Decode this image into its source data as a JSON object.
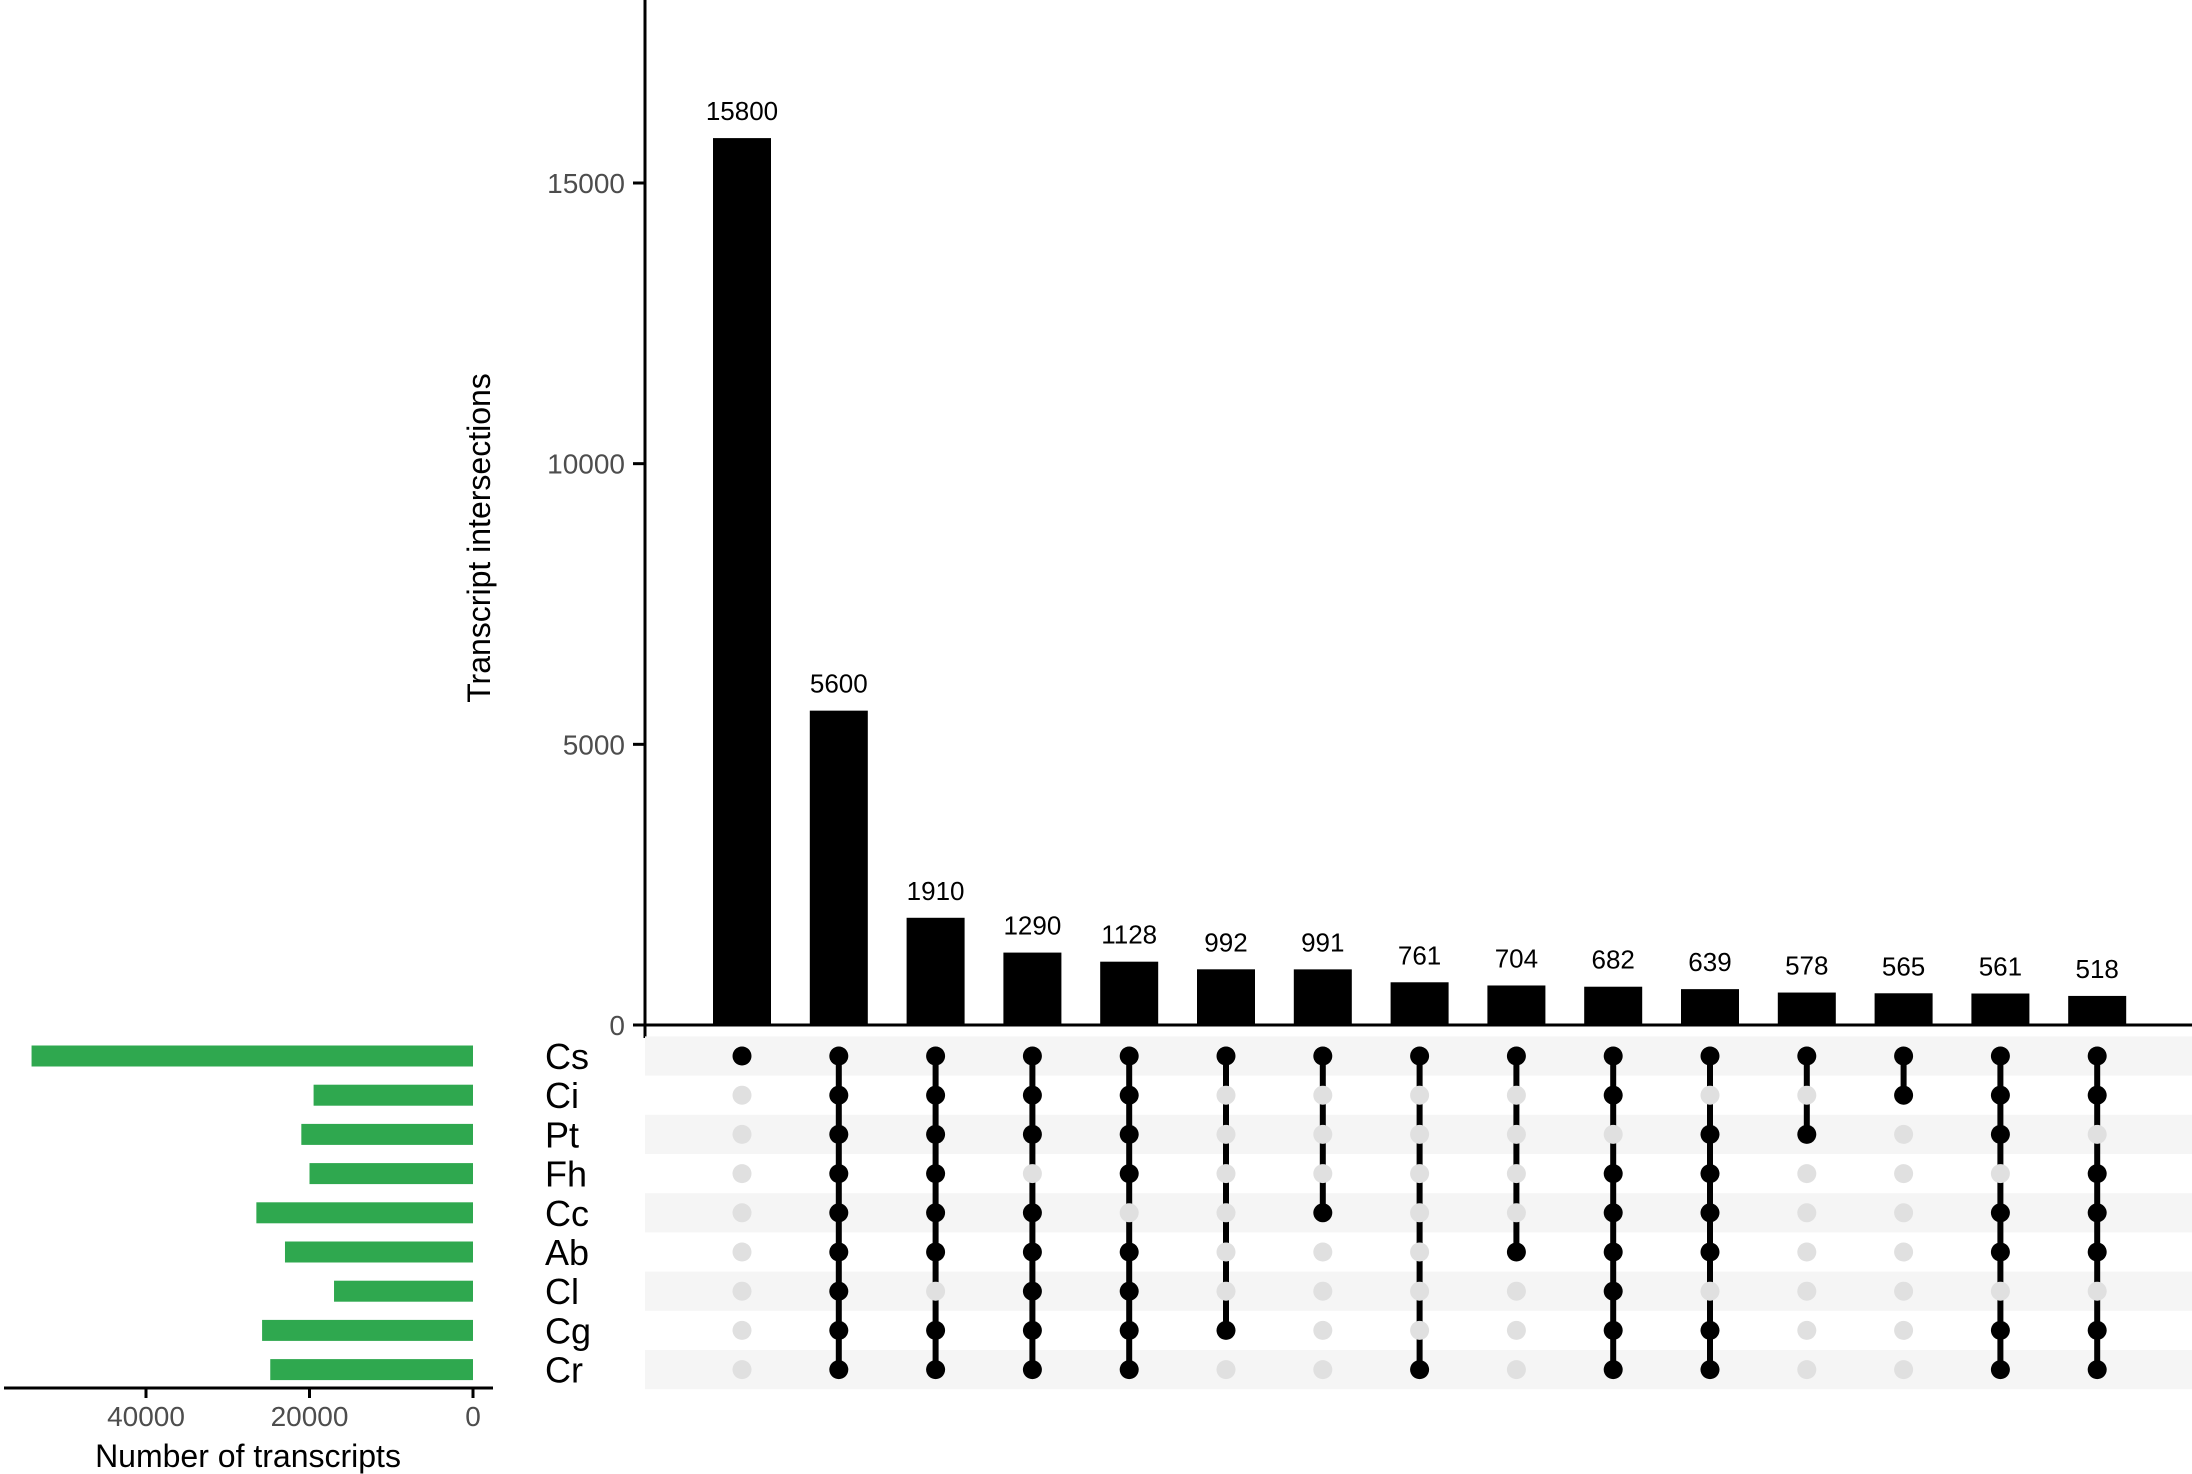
{
  "chart_data": [
    {
      "type": "bar",
      "role": "intersection-sizes",
      "ylabel": "Transcript intersections",
      "ylim": [
        0,
        18000
      ],
      "yticks": [
        0,
        5000,
        10000,
        15000
      ],
      "values": [
        15800,
        5600,
        1910,
        1290,
        1128,
        992,
        991,
        761,
        704,
        682,
        639,
        578,
        565,
        561,
        518
      ],
      "value_labels": [
        "15800",
        "5600",
        "1910",
        "1290",
        "1128",
        "992",
        "991",
        "761",
        "704",
        "682",
        "639",
        "578",
        "565",
        "561",
        "518"
      ],
      "bar_color": "#000000"
    },
    {
      "type": "bar",
      "role": "set-sizes",
      "orientation": "horizontal",
      "xlabel": "Number of transcripts",
      "xlim": [
        0,
        56000
      ],
      "xticks": [
        40000,
        20000,
        0
      ],
      "reversed": true,
      "categories": [
        "Cs",
        "Ci",
        "Pt",
        "Fh",
        "Cc",
        "Ab",
        "Cl",
        "Cg",
        "Cr"
      ],
      "values": [
        54000,
        19500,
        21000,
        20000,
        26500,
        23000,
        17000,
        25800,
        24800
      ],
      "bar_color": "#2fa84f"
    },
    {
      "type": "table",
      "role": "intersection-matrix",
      "sets": [
        "Cs",
        "Ci",
        "Pt",
        "Fh",
        "Cc",
        "Ab",
        "Cl",
        "Cg",
        "Cr"
      ],
      "memberships": [
        [
          "Cs"
        ],
        [
          "Cs",
          "Ci",
          "Pt",
          "Fh",
          "Cc",
          "Ab",
          "Cl",
          "Cg",
          "Cr"
        ],
        [
          "Cs",
          "Ci",
          "Pt",
          "Fh",
          "Cc",
          "Ab",
          "Cg",
          "Cr"
        ],
        [
          "Cs",
          "Ci",
          "Pt",
          "Cc",
          "Ab",
          "Cl",
          "Cg",
          "Cr"
        ],
        [
          "Cs",
          "Ci",
          "Pt",
          "Fh",
          "Ab",
          "Cl",
          "Cg",
          "Cr"
        ],
        [
          "Cs",
          "Cg"
        ],
        [
          "Cs",
          "Cc"
        ],
        [
          "Cs",
          "Cr"
        ],
        [
          "Cs",
          "Ab"
        ],
        [
          "Cs",
          "Ci",
          "Fh",
          "Cc",
          "Ab",
          "Cl",
          "Cg",
          "Cr"
        ],
        [
          "Cs",
          "Pt",
          "Fh",
          "Cc",
          "Ab",
          "Cg",
          "Cr"
        ],
        [
          "Cs",
          "Pt"
        ],
        [
          "Cs",
          "Ci"
        ],
        [
          "Cs",
          "Ci",
          "Pt",
          "Cc",
          "Ab",
          "Cg",
          "Cr"
        ],
        [
          "Cs",
          "Ci",
          "Fh",
          "Cc",
          "Ab",
          "Cg",
          "Cr"
        ]
      ],
      "active_color": "#000000",
      "inactive_color": "#e0e0e0",
      "stripe_color": "#f5f5f5"
    }
  ]
}
